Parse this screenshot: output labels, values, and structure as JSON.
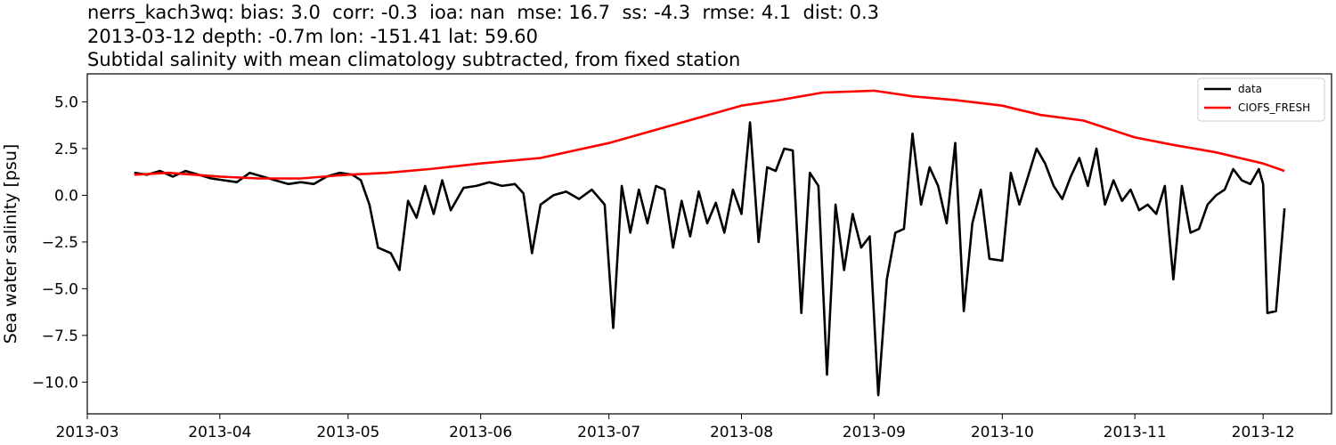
{
  "chart_data": {
    "type": "line",
    "title_lines": [
      "nerrs_kach3wq: bias: 3.0  corr: -0.3  ioa: nan  mse: 16.7  ss: -4.3  rmse: 4.1  dist: 0.3",
      "2013-03-12 depth: -0.7m lon: -151.41 lat: 59.60",
      "Subtidal salinity with mean climatology subtracted, from fixed station"
    ],
    "xlabel": "",
    "ylabel": "Sea water salinity [psu]",
    "xlim": [
      "2013-03-01",
      "2013-12-17"
    ],
    "ylim": [
      -11.7,
      6.5
    ],
    "x_ticks": [
      "2013-03",
      "2013-04",
      "2013-05",
      "2013-06",
      "2013-07",
      "2013-08",
      "2013-09",
      "2013-10",
      "2013-11",
      "2013-12"
    ],
    "y_ticks": [
      5.0,
      2.5,
      0.0,
      -2.5,
      -5.0,
      -7.5,
      -10.0
    ],
    "y_tick_labels": [
      "5.0",
      "2.5",
      "0.0",
      "−2.5",
      "−5.0",
      "−7.5",
      "−10.0"
    ],
    "grid": false,
    "legend_position": "top-right",
    "series": [
      {
        "name": "data",
        "color": "#000000",
        "points": [
          [
            "2013-03-12",
            1.2
          ],
          [
            "2013-03-15",
            1.1
          ],
          [
            "2013-03-18",
            1.3
          ],
          [
            "2013-03-21",
            1.0
          ],
          [
            "2013-03-24",
            1.3
          ],
          [
            "2013-03-27",
            1.1
          ],
          [
            "2013-03-30",
            0.9
          ],
          [
            "2013-04-02",
            0.8
          ],
          [
            "2013-04-05",
            0.7
          ],
          [
            "2013-04-08",
            1.2
          ],
          [
            "2013-04-11",
            1.0
          ],
          [
            "2013-04-14",
            0.8
          ],
          [
            "2013-04-17",
            0.6
          ],
          [
            "2013-04-20",
            0.7
          ],
          [
            "2013-04-23",
            0.6
          ],
          [
            "2013-04-26",
            1.0
          ],
          [
            "2013-04-29",
            1.2
          ],
          [
            "2013-05-02",
            1.1
          ],
          [
            "2013-05-04",
            0.8
          ],
          [
            "2013-05-06",
            -0.5
          ],
          [
            "2013-05-08",
            -2.8
          ],
          [
            "2013-05-11",
            -3.1
          ],
          [
            "2013-05-13",
            -4.0
          ],
          [
            "2013-05-15",
            -0.3
          ],
          [
            "2013-05-17",
            -1.2
          ],
          [
            "2013-05-19",
            0.5
          ],
          [
            "2013-05-21",
            -1.0
          ],
          [
            "2013-05-23",
            0.8
          ],
          [
            "2013-05-25",
            -0.8
          ],
          [
            "2013-05-28",
            0.4
          ],
          [
            "2013-05-31",
            0.5
          ],
          [
            "2013-06-03",
            0.7
          ],
          [
            "2013-06-06",
            0.5
          ],
          [
            "2013-06-09",
            0.6
          ],
          [
            "2013-06-11",
            0.1
          ],
          [
            "2013-06-13",
            -3.1
          ],
          [
            "2013-06-15",
            -0.5
          ],
          [
            "2013-06-18",
            0.0
          ],
          [
            "2013-06-21",
            0.2
          ],
          [
            "2013-06-24",
            -0.2
          ],
          [
            "2013-06-27",
            0.3
          ],
          [
            "2013-06-30",
            -0.5
          ],
          [
            "2013-07-02",
            -7.1
          ],
          [
            "2013-07-04",
            0.5
          ],
          [
            "2013-07-06",
            -2.0
          ],
          [
            "2013-07-08",
            0.3
          ],
          [
            "2013-07-10",
            -1.5
          ],
          [
            "2013-07-12",
            0.5
          ],
          [
            "2013-07-14",
            0.3
          ],
          [
            "2013-07-16",
            -2.8
          ],
          [
            "2013-07-18",
            -0.3
          ],
          [
            "2013-07-20",
            -2.2
          ],
          [
            "2013-07-22",
            0.2
          ],
          [
            "2013-07-24",
            -1.5
          ],
          [
            "2013-07-26",
            -0.4
          ],
          [
            "2013-07-28",
            -2.0
          ],
          [
            "2013-07-30",
            0.3
          ],
          [
            "2013-08-01",
            -1.0
          ],
          [
            "2013-08-03",
            3.9
          ],
          [
            "2013-08-05",
            -2.5
          ],
          [
            "2013-08-07",
            1.5
          ],
          [
            "2013-08-09",
            1.3
          ],
          [
            "2013-08-11",
            2.5
          ],
          [
            "2013-08-13",
            2.4
          ],
          [
            "2013-08-15",
            -6.3
          ],
          [
            "2013-08-17",
            1.2
          ],
          [
            "2013-08-19",
            0.5
          ],
          [
            "2013-08-21",
            -9.6
          ],
          [
            "2013-08-23",
            -0.5
          ],
          [
            "2013-08-25",
            -4.0
          ],
          [
            "2013-08-27",
            -1.0
          ],
          [
            "2013-08-29",
            -2.8
          ],
          [
            "2013-08-31",
            -2.2
          ],
          [
            "2013-09-02",
            -10.7
          ],
          [
            "2013-09-04",
            -4.5
          ],
          [
            "2013-09-06",
            -2.0
          ],
          [
            "2013-09-08",
            -1.8
          ],
          [
            "2013-09-10",
            3.3
          ],
          [
            "2013-09-12",
            -0.5
          ],
          [
            "2013-09-14",
            1.5
          ],
          [
            "2013-09-16",
            0.5
          ],
          [
            "2013-09-18",
            -1.5
          ],
          [
            "2013-09-20",
            2.8
          ],
          [
            "2013-09-22",
            -6.2
          ],
          [
            "2013-09-24",
            -1.5
          ],
          [
            "2013-09-26",
            0.3
          ],
          [
            "2013-09-28",
            -3.4
          ],
          [
            "2013-10-01",
            -3.5
          ],
          [
            "2013-10-03",
            1.2
          ],
          [
            "2013-10-05",
            -0.5
          ],
          [
            "2013-10-07",
            1.0
          ],
          [
            "2013-10-09",
            2.5
          ],
          [
            "2013-10-11",
            1.7
          ],
          [
            "2013-10-13",
            0.5
          ],
          [
            "2013-10-15",
            -0.2
          ],
          [
            "2013-10-17",
            1.0
          ],
          [
            "2013-10-19",
            2.0
          ],
          [
            "2013-10-21",
            0.5
          ],
          [
            "2013-10-23",
            2.5
          ],
          [
            "2013-10-25",
            -0.5
          ],
          [
            "2013-10-27",
            0.8
          ],
          [
            "2013-10-29",
            -0.3
          ],
          [
            "2013-10-31",
            0.3
          ],
          [
            "2013-11-02",
            -0.8
          ],
          [
            "2013-11-04",
            -0.5
          ],
          [
            "2013-11-06",
            -1.0
          ],
          [
            "2013-11-08",
            0.5
          ],
          [
            "2013-11-10",
            -4.5
          ],
          [
            "2013-11-12",
            0.5
          ],
          [
            "2013-11-14",
            -2.0
          ],
          [
            "2013-11-16",
            -1.8
          ],
          [
            "2013-11-18",
            -0.5
          ],
          [
            "2013-11-20",
            0.0
          ],
          [
            "2013-11-22",
            0.3
          ],
          [
            "2013-11-24",
            1.4
          ],
          [
            "2013-11-26",
            0.8
          ],
          [
            "2013-11-28",
            0.6
          ],
          [
            "2013-11-30",
            1.4
          ],
          [
            "2013-12-01",
            0.6
          ],
          [
            "2013-12-02",
            -6.3
          ],
          [
            "2013-12-04",
            -6.2
          ],
          [
            "2013-12-06",
            -0.7
          ]
        ]
      },
      {
        "name": "CIOFS_FRESH",
        "color": "#ff0000",
        "points": [
          [
            "2013-03-12",
            1.1
          ],
          [
            "2013-03-20",
            1.2
          ],
          [
            "2013-04-01",
            1.0
          ],
          [
            "2013-04-10",
            0.9
          ],
          [
            "2013-04-20",
            0.9
          ],
          [
            "2013-05-01",
            1.1
          ],
          [
            "2013-05-10",
            1.2
          ],
          [
            "2013-05-20",
            1.4
          ],
          [
            "2013-06-01",
            1.7
          ],
          [
            "2013-06-15",
            2.0
          ],
          [
            "2013-07-01",
            2.8
          ],
          [
            "2013-07-15",
            3.7
          ],
          [
            "2013-08-01",
            4.8
          ],
          [
            "2013-08-10",
            5.1
          ],
          [
            "2013-08-20",
            5.5
          ],
          [
            "2013-09-01",
            5.6
          ],
          [
            "2013-09-10",
            5.3
          ],
          [
            "2013-09-20",
            5.1
          ],
          [
            "2013-10-01",
            4.8
          ],
          [
            "2013-10-10",
            4.3
          ],
          [
            "2013-10-20",
            4.0
          ],
          [
            "2013-11-01",
            3.1
          ],
          [
            "2013-11-10",
            2.7
          ],
          [
            "2013-11-20",
            2.3
          ],
          [
            "2013-12-01",
            1.7
          ],
          [
            "2013-12-06",
            1.3
          ]
        ]
      }
    ]
  }
}
